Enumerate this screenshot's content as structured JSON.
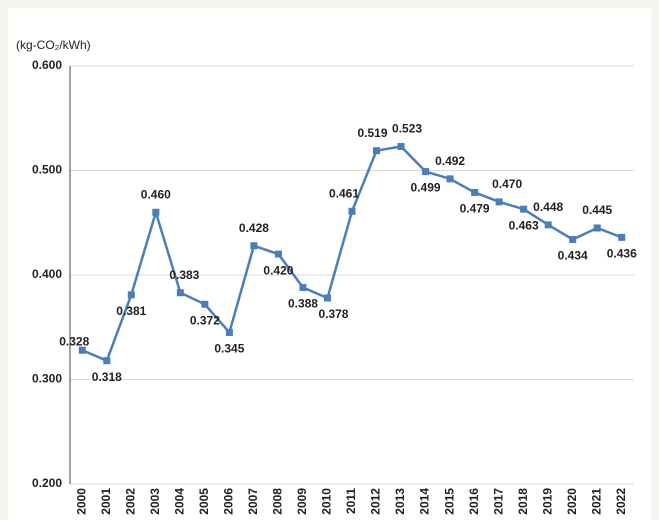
{
  "chart_data": {
    "type": "line",
    "y_axis_label": "(kg-CO₂/kWh)",
    "categories": [
      "2000",
      "2001",
      "2002",
      "2003",
      "2004",
      "2005",
      "2006",
      "2007",
      "2008",
      "2009",
      "2010",
      "2011",
      "2012",
      "2013",
      "2014",
      "2015",
      "2016",
      "2017",
      "2018",
      "2019",
      "2020",
      "2021",
      "2022"
    ],
    "series": [
      {
        "color": "#4a7ebb",
        "values": [
          0.328,
          0.318,
          0.381,
          0.46,
          0.383,
          0.372,
          0.345,
          0.428,
          0.42,
          0.388,
          0.378,
          0.461,
          0.519,
          0.523,
          0.499,
          0.492,
          0.479,
          0.47,
          0.463,
          0.448,
          0.434,
          0.445,
          0.436
        ],
        "value_labels": [
          "0.328",
          "0.318",
          "0.381",
          "0.460",
          "0.383",
          "0.372",
          "0.345",
          "0.428",
          "0.420",
          "0.388",
          "0.378",
          "0.461",
          "0.519",
          "0.523",
          "0.499",
          "0.492",
          "0.479",
          "0.470",
          "0.463",
          "0.448",
          "0.434",
          "0.445",
          "0.436"
        ]
      }
    ],
    "ylim": [
      0.2,
      0.6
    ],
    "yticks": [
      {
        "value": 0.2,
        "label": "0.200"
      },
      {
        "value": 0.3,
        "label": "0.300"
      },
      {
        "value": 0.4,
        "label": "0.400"
      },
      {
        "value": 0.5,
        "label": "0.500"
      },
      {
        "value": 0.6,
        "label": "0.600"
      }
    ],
    "grid": true
  }
}
